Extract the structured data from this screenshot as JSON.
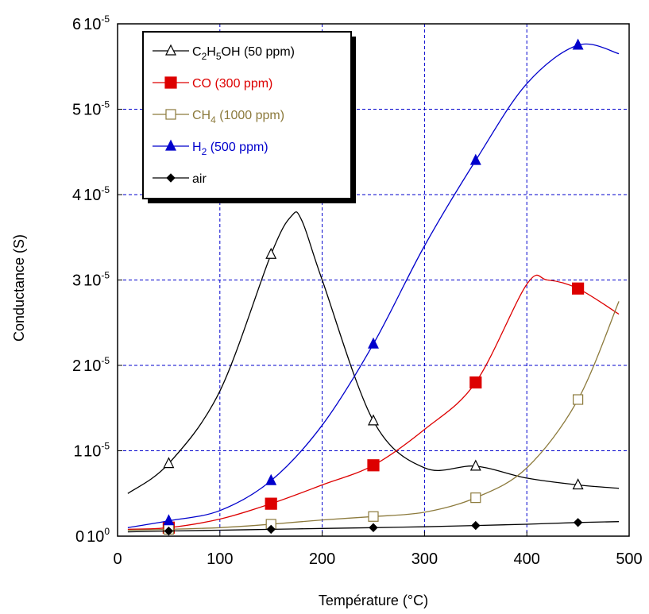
{
  "chart_data": {
    "type": "line",
    "xlabel": "Température (°C)",
    "ylabel": "Conductance (S)",
    "xlim": [
      0,
      500
    ],
    "ylim": [
      0,
      6e-05
    ],
    "x_ticks": [
      "0",
      "100",
      "200",
      "300",
      "400",
      "500"
    ],
    "y_ticks": [
      {
        "mantissa": "0",
        "exp": "0"
      },
      {
        "mantissa": "1",
        "exp": "-5"
      },
      {
        "mantissa": "2",
        "exp": "-5"
      },
      {
        "mantissa": "3",
        "exp": "-5"
      },
      {
        "mantissa": "4",
        "exp": "-5"
      },
      {
        "mantissa": "5",
        "exp": "-5"
      },
      {
        "mantissa": "6",
        "exp": "-5"
      }
    ],
    "grid": true,
    "grid_style": "dashed",
    "grid_color": "#0000cc",
    "legend_position": "top-left",
    "series": [
      {
        "name": "C2H5OH (50 ppm)",
        "legend_parts": [
          {
            "t": "C"
          },
          {
            "t": "2",
            "sub": true
          },
          {
            "t": "H"
          },
          {
            "t": "5",
            "sub": true
          },
          {
            "t": "OH (50 ppm)"
          }
        ],
        "color": "#000000",
        "marker": "triangle-open",
        "curve_x": [
          10,
          50,
          100,
          150,
          170,
          180,
          200,
          250,
          300,
          350,
          400,
          450,
          490
        ],
        "curve_y": [
          5e-06,
          8.5e-06,
          1.7e-05,
          3.3e-05,
          3.75e-05,
          3.7e-05,
          3e-05,
          1.35e-05,
          8e-06,
          8.2e-06,
          6.8e-06,
          6e-06,
          5.6e-06
        ],
        "marker_x": [
          50,
          150,
          250,
          350,
          450
        ],
        "marker_y": [
          8.5e-06,
          3.3e-05,
          1.35e-05,
          8.2e-06,
          6e-06
        ]
      },
      {
        "name": "CO (300 ppm)",
        "legend_parts": [
          {
            "t": "CO (300 ppm)"
          }
        ],
        "color": "#dd0000",
        "marker": "square-filled",
        "curve_x": [
          10,
          50,
          100,
          150,
          200,
          250,
          300,
          350,
          400,
          420,
          450,
          490
        ],
        "curve_y": [
          8e-07,
          1e-06,
          2e-06,
          3.8e-06,
          6e-06,
          8.3e-06,
          1.25e-05,
          1.8e-05,
          2.95e-05,
          3e-05,
          2.9e-05,
          2.6e-05
        ],
        "marker_x": [
          50,
          150,
          250,
          350,
          450
        ],
        "marker_y": [
          1e-06,
          3.8e-06,
          8.3e-06,
          1.8e-05,
          2.9e-05
        ]
      },
      {
        "name": "CH4 (1000 ppm)",
        "legend_parts": [
          {
            "t": "CH"
          },
          {
            "t": "4",
            "sub": true
          },
          {
            "t": " (1000 ppm)"
          }
        ],
        "color": "#8c7a3c",
        "marker": "square-open",
        "curve_x": [
          10,
          50,
          100,
          150,
          200,
          250,
          300,
          350,
          400,
          450,
          490
        ],
        "curve_y": [
          7e-07,
          8e-07,
          1e-06,
          1.4e-06,
          1.9e-06,
          2.3e-06,
          2.8e-06,
          4.5e-06,
          8e-06,
          1.6e-05,
          2.75e-05
        ],
        "marker_x": [
          50,
          150,
          250,
          350,
          450
        ],
        "marker_y": [
          8e-07,
          1.4e-06,
          2.3e-06,
          4.5e-06,
          1.6e-05
        ]
      },
      {
        "name": "H2 (500 ppm)",
        "legend_parts": [
          {
            "t": "H"
          },
          {
            "t": "2",
            "sub": true
          },
          {
            "t": " (500 ppm)"
          }
        ],
        "color": "#0000cc",
        "marker": "triangle-filled",
        "curve_x": [
          10,
          50,
          100,
          150,
          200,
          250,
          300,
          350,
          400,
          450,
          490
        ],
        "curve_y": [
          1e-06,
          1.8e-06,
          3e-06,
          6.5e-06,
          1.3e-05,
          2.25e-05,
          3.4e-05,
          4.4e-05,
          5.3e-05,
          5.75e-05,
          5.65e-05
        ],
        "marker_x": [
          50,
          150,
          250,
          350,
          450
        ],
        "marker_y": [
          1.8e-06,
          6.5e-06,
          2.25e-05,
          4.4e-05,
          5.75e-05
        ]
      },
      {
        "name": "air",
        "legend_parts": [
          {
            "t": "air"
          }
        ],
        "color": "#000000",
        "marker": "diamond-filled",
        "curve_x": [
          10,
          50,
          100,
          150,
          200,
          250,
          300,
          350,
          400,
          450,
          490
        ],
        "curve_y": [
          5e-07,
          6e-07,
          7e-07,
          8e-07,
          9e-07,
          1e-06,
          1.1e-06,
          1.25e-06,
          1.4e-06,
          1.6e-06,
          1.7e-06
        ],
        "marker_x": [
          50,
          150,
          250,
          350,
          450
        ],
        "marker_y": [
          6e-07,
          8e-07,
          1e-06,
          1.25e-06,
          1.6e-06
        ]
      }
    ]
  }
}
